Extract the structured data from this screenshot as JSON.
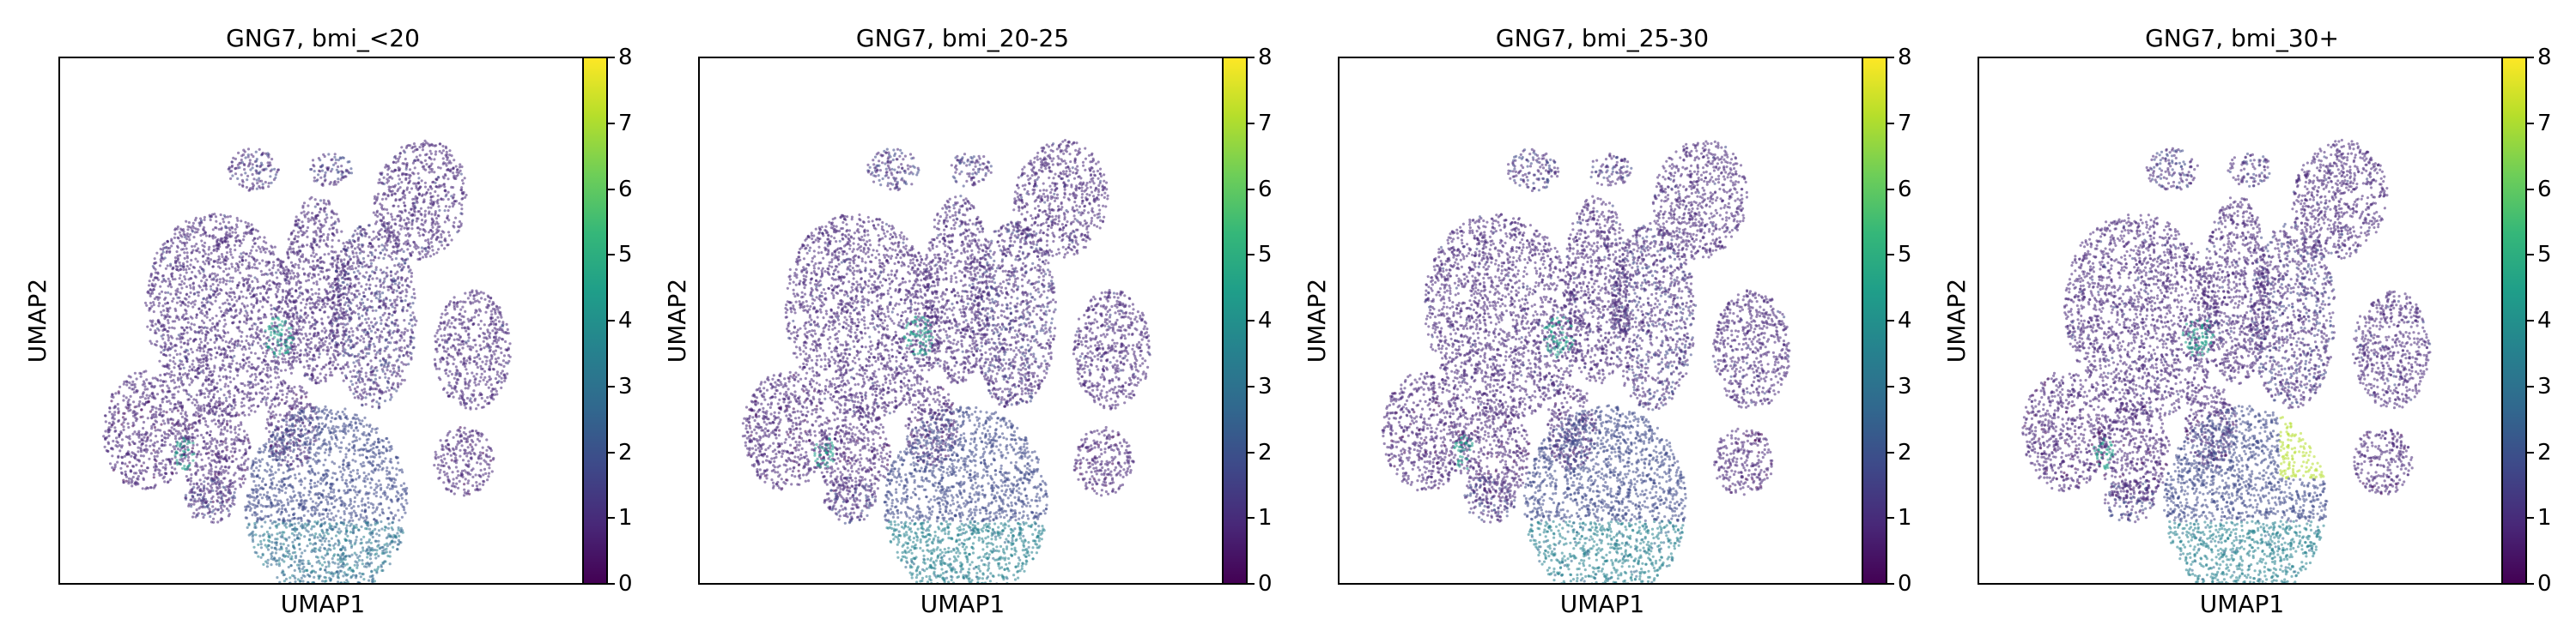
{
  "figure": {
    "xlabel": "UMAP1",
    "ylabel": "UMAP2"
  },
  "colorbar": {
    "colormap": "viridis",
    "ticks": [
      "0",
      "1",
      "2",
      "3",
      "4",
      "5",
      "6",
      "7",
      "8"
    ],
    "colors": [
      "#440154",
      "#482878",
      "#3e4989",
      "#31688e",
      "#26828e",
      "#1f9e89",
      "#35b779",
      "#6ece58",
      "#b5de2b",
      "#fde725"
    ]
  },
  "chart_data": [
    {
      "type": "scatter",
      "title": "GNG7, bmi_<20",
      "xlabel": "UMAP1",
      "ylabel": "UMAP2",
      "color_range": [
        0,
        8
      ],
      "colormap": "viridis",
      "grid": false,
      "axis_ticks": "none"
    },
    {
      "type": "scatter",
      "title": "GNG7, bmi_20-25",
      "xlabel": "UMAP1",
      "ylabel": "UMAP2",
      "color_range": [
        0,
        8
      ],
      "colormap": "viridis",
      "grid": false,
      "axis_ticks": "none"
    },
    {
      "type": "scatter",
      "title": "GNG7, bmi_25-30",
      "xlabel": "UMAP1",
      "ylabel": "UMAP2",
      "color_range": [
        0,
        8
      ],
      "colormap": "viridis",
      "grid": false,
      "axis_ticks": "none"
    },
    {
      "type": "scatter",
      "title": "GNG7, bmi_30+",
      "xlabel": "UMAP1",
      "ylabel": "UMAP2",
      "color_range": [
        0,
        8
      ],
      "colormap": "viridis",
      "grid": false,
      "axis_ticks": "none"
    }
  ]
}
